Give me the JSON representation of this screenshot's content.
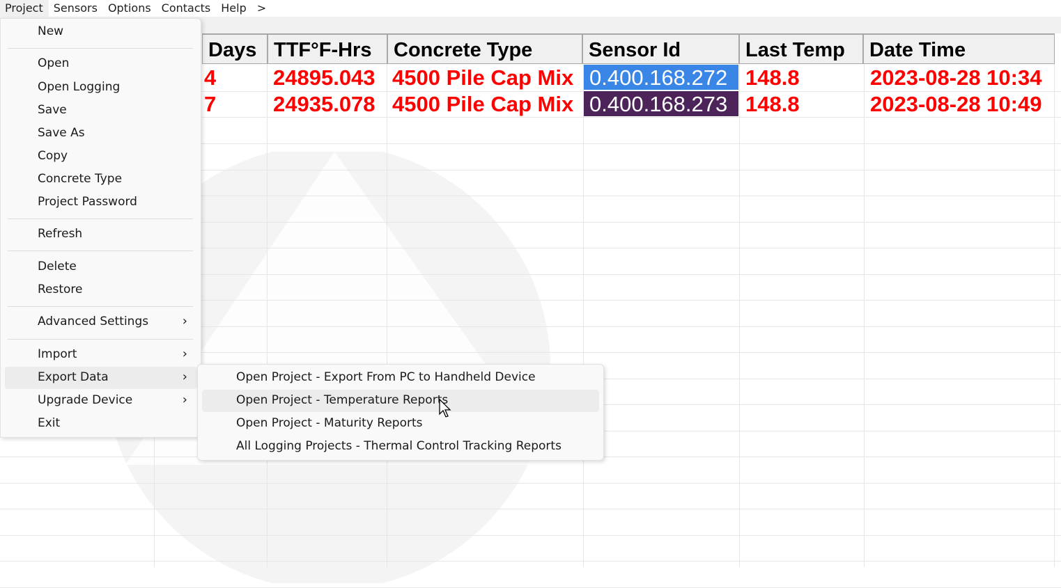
{
  "menubar": [
    "Project",
    "Sensors",
    "Options",
    "Contacts",
    "Help",
    ">"
  ],
  "table": {
    "headers": [
      "Days",
      "TTF°F-Hrs",
      "Concrete Type",
      "Sensor Id",
      "Last Temp",
      "Date Time"
    ],
    "rows": [
      {
        "days": "4",
        "ttf": "24895.043",
        "type": "4500 Pile Cap Mix",
        "sensor": "0.400.168.272",
        "temp": "148.8",
        "datetime": "2023-08-28 10:34"
      },
      {
        "days": "7",
        "ttf": "24935.078",
        "type": "4500 Pile Cap Mix",
        "sensor": "0.400.168.273",
        "temp": "148.8",
        "datetime": "2023-08-28 10:49"
      }
    ],
    "selection_colors": [
      "#3a86e6",
      "#4d2459"
    ],
    "value_color": "#ff0000"
  },
  "project_menu": {
    "items": [
      "New",
      "Open",
      "Open Logging",
      "Save",
      "Save As",
      "Copy",
      "Concrete Type",
      "Project Password",
      "Refresh",
      "Delete",
      "Restore",
      "Advanced Settings",
      "Import",
      "Export Data",
      "Upgrade Device",
      "Exit"
    ],
    "highlighted": "Export Data"
  },
  "export_submenu": {
    "items": [
      "Open Project - Export From PC to Handheld Device",
      "Open Project - Temperature Reports",
      "Open Project - Maturity Reports",
      "All Logging Projects - Thermal Control Tracking Reports"
    ],
    "hovered": "Open Project - Temperature Reports"
  }
}
